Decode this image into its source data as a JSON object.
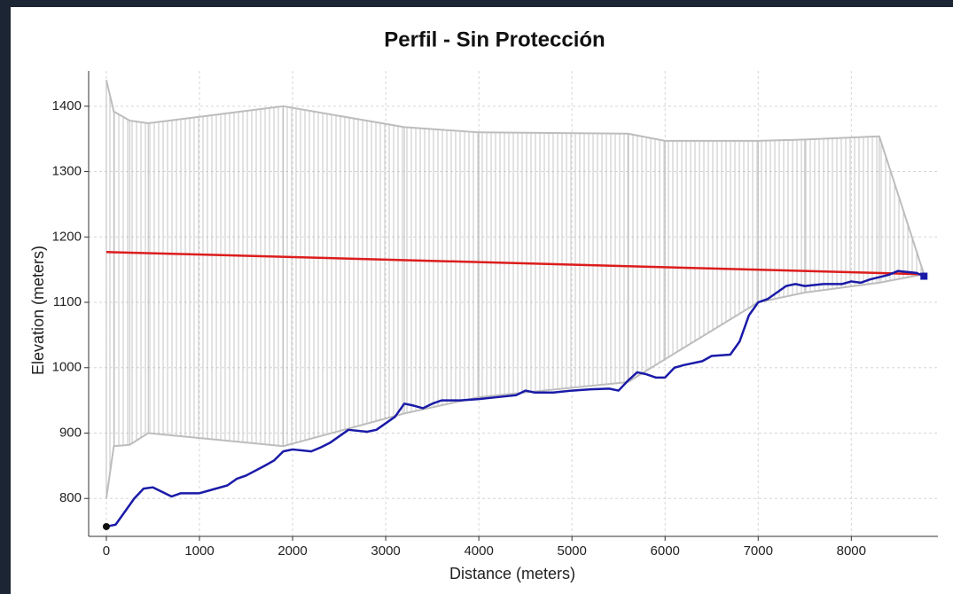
{
  "chart_data": {
    "type": "line",
    "title": "Perfil - Sin Protección",
    "x_label": "Distance (meters)",
    "y_label": "Elevation (meters)",
    "xlim": [
      -190,
      8930
    ],
    "ylim": [
      742,
      1454
    ],
    "xticks": [
      0,
      1000,
      2000,
      3000,
      4000,
      5000,
      6000,
      7000,
      8000
    ],
    "yticks": [
      800,
      900,
      1000,
      1100,
      1200,
      1300,
      1400
    ],
    "grid": true,
    "envelope": {
      "color": "#bdbdbd",
      "x": [
        0,
        80,
        250,
        450,
        1900,
        3200,
        4000,
        5600,
        6000,
        7000,
        7500,
        8300,
        8780
      ],
      "upper": [
        1440,
        1392,
        1378,
        1374,
        1400,
        1368,
        1360,
        1358,
        1347,
        1347,
        1349,
        1354,
        1143
      ],
      "lower": [
        800,
        880,
        882,
        900,
        880,
        930,
        955,
        978,
        1013,
        1100,
        1115,
        1130,
        1143
      ]
    },
    "series": [
      {
        "color": "#dd1c1c",
        "x": [
          0,
          8780
        ],
        "values": [
          1177,
          1143
        ]
      },
      {
        "color": "#1a1aa8",
        "x": [
          0,
          100,
          200,
          300,
          400,
          500,
          600,
          700,
          800,
          1000,
          1100,
          1300,
          1400,
          1500,
          1700,
          1800,
          1900,
          2000,
          2200,
          2300,
          2400,
          2500,
          2600,
          2800,
          2900,
          3000,
          3100,
          3200,
          3300,
          3400,
          3500,
          3600,
          3800,
          4000,
          4200,
          4400,
          4500,
          4600,
          4800,
          5000,
          5200,
          5400,
          5500,
          5600,
          5700,
          5800,
          5900,
          6000,
          6100,
          6200,
          6400,
          6500,
          6700,
          6800,
          6900,
          7000,
          7100,
          7200,
          7300,
          7400,
          7500,
          7700,
          7900,
          8000,
          8100,
          8200,
          8400,
          8500,
          8700,
          8780
        ],
        "values": [
          757,
          760,
          780,
          800,
          815,
          817,
          810,
          803,
          808,
          808,
          812,
          820,
          830,
          835,
          850,
          858,
          872,
          875,
          872,
          878,
          885,
          895,
          905,
          902,
          905,
          915,
          925,
          945,
          942,
          938,
          945,
          950,
          950,
          952,
          955,
          958,
          965,
          962,
          962,
          965,
          967,
          968,
          965,
          980,
          993,
          990,
          985,
          985,
          1000,
          1004,
          1010,
          1018,
          1020,
          1040,
          1080,
          1100,
          1105,
          1115,
          1125,
          1128,
          1125,
          1128,
          1128,
          1132,
          1130,
          1135,
          1142,
          1148,
          1145,
          1140
        ]
      }
    ]
  }
}
